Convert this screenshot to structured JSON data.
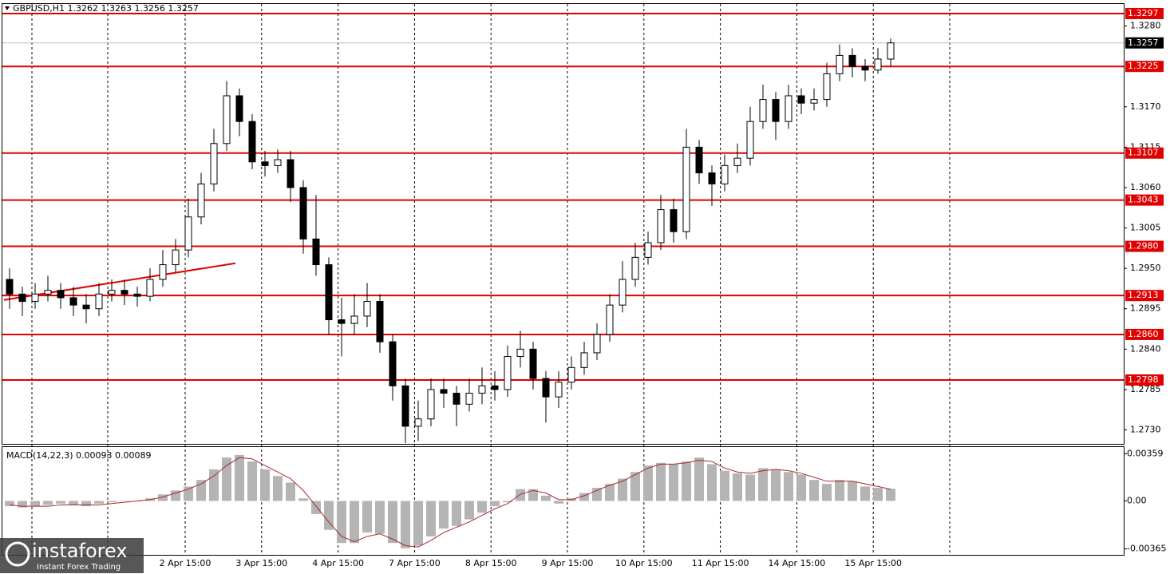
{
  "chart_data": {
    "type": "candlestick",
    "title": "GBPUSD,H1  1.3262 1.3263 1.3256 1.3257",
    "ylim": [
      1.2711,
      1.331
    ],
    "yticks": [
      {
        "value": 1.328,
        "label": "1.3280"
      },
      {
        "value": 1.317,
        "label": "1.3170"
      },
      1.3115,
      {
        "value": 1.306,
        "label": "1.3060"
      },
      1.3005,
      {
        "value": 1.295,
        "label": "1.2950"
      },
      1.2895,
      {
        "value": 1.284,
        "label": "1.2840"
      },
      1.2785,
      {
        "value": 1.273,
        "label": "1.2730"
      }
    ],
    "levels": [
      1.3297,
      1.3225,
      1.3107,
      1.3043,
      {
        "value": 1.298,
        "label": "1.2980"
      },
      1.2913,
      {
        "value": 1.286,
        "label": "1.2860"
      },
      1.2798
    ],
    "level_color": "#e00000",
    "current_price": 1.3257,
    "trendline": [
      1.2907,
      1.2957
    ],
    "xticks": [
      "2 Apr 15:00",
      "3 Apr 15:00",
      "4 Apr 15:00",
      "7 Apr 15:00",
      "8 Apr 15:00",
      "9 Apr 15:00",
      "10 Apr 15:00",
      "11 Apr 15:00",
      "14 Apr 15:00",
      "15 Apr 15:00"
    ],
    "open": [
      1.2935,
      1.2915,
      1.2905,
      1.2915,
      1.292,
      1.291,
      1.29,
      1.2895,
      1.2915,
      1.292,
      1.2915,
      1.2912,
      1.2935,
      1.2955,
      1.2975,
      1.302,
      1.3065,
      1.312,
      1.3185,
      1.315,
      1.3095,
      1.309,
      1.3098,
      1.306,
      1.299,
      1.2955,
      1.288,
      1.2875,
      1.2885,
      1.2905,
      1.285,
      1.279,
      1.2735,
      1.2745,
      1.2785,
      1.278,
      1.2765,
      1.278,
      1.279,
      1.2785,
      1.283,
      1.284,
      1.28,
      1.2775,
      1.2795,
      1.2815,
      1.2835,
      1.286,
      1.29,
      1.2935,
      1.2965,
      1.2985,
      1.303,
      1.3,
      1.3115,
      1.308,
      1.3065,
      1.309,
      1.31,
      1.315,
      1.318,
      1.315,
      1.3185,
      1.3175,
      1.318,
      1.3215,
      1.324,
      1.3225,
      1.322,
      1.3235
    ],
    "high": [
      1.295,
      1.2925,
      1.293,
      1.294,
      1.293,
      1.2925,
      1.2915,
      1.293,
      1.2935,
      1.2935,
      1.2925,
      1.295,
      1.2975,
      1.299,
      1.3045,
      1.308,
      1.314,
      1.3205,
      1.3195,
      1.316,
      1.311,
      1.3112,
      1.311,
      1.307,
      1.305,
      1.2965,
      1.291,
      1.2915,
      1.293,
      1.2915,
      1.286,
      1.28,
      1.277,
      1.28,
      1.28,
      1.279,
      1.28,
      1.2815,
      1.281,
      1.2845,
      1.2865,
      1.285,
      1.281,
      1.281,
      1.283,
      1.285,
      1.2875,
      1.2915,
      1.296,
      1.2985,
      1.3,
      1.305,
      1.3045,
      1.314,
      1.3125,
      1.309,
      1.3105,
      1.312,
      1.317,
      1.32,
      1.319,
      1.32,
      1.3195,
      1.3195,
      1.323,
      1.3255,
      1.325,
      1.3235,
      1.325,
      1.3263
    ],
    "low": [
      1.2895,
      1.2885,
      1.2895,
      1.2905,
      1.2895,
      1.2885,
      1.2875,
      1.2885,
      1.2905,
      1.29,
      1.2898,
      1.2905,
      1.2925,
      1.2945,
      1.2965,
      1.301,
      1.3055,
      1.311,
      1.313,
      1.3085,
      1.3075,
      1.308,
      1.304,
      1.297,
      1.294,
      1.286,
      1.283,
      1.286,
      1.287,
      1.2835,
      1.277,
      1.2712,
      1.2715,
      1.2735,
      1.276,
      1.2735,
      1.2755,
      1.2765,
      1.277,
      1.2775,
      1.2815,
      1.2785,
      1.274,
      1.276,
      1.2785,
      1.2805,
      1.2825,
      1.285,
      1.289,
      1.2925,
      1.2955,
      1.2975,
      1.2985,
      1.299,
      1.3065,
      1.3035,
      1.3055,
      1.308,
      1.309,
      1.314,
      1.3125,
      1.314,
      1.316,
      1.3165,
      1.317,
      1.3205,
      1.321,
      1.3205,
      1.3215,
      1.3225
    ],
    "close": [
      1.2915,
      1.2905,
      1.2915,
      1.292,
      1.291,
      1.29,
      1.2895,
      1.2915,
      1.292,
      1.2915,
      1.2912,
      1.2935,
      1.2955,
      1.2975,
      1.302,
      1.3065,
      1.312,
      1.3185,
      1.315,
      1.3095,
      1.309,
      1.3098,
      1.306,
      1.299,
      1.2955,
      1.288,
      1.2875,
      1.2885,
      1.2905,
      1.285,
      1.279,
      1.2735,
      1.2745,
      1.2785,
      1.278,
      1.2765,
      1.278,
      1.279,
      1.2785,
      1.283,
      1.284,
      1.28,
      1.2775,
      1.2795,
      1.2815,
      1.2835,
      1.286,
      1.29,
      1.2935,
      1.2965,
      1.2985,
      1.303,
      1.3,
      1.3115,
      1.308,
      1.3065,
      1.309,
      1.31,
      1.315,
      1.318,
      1.315,
      1.3185,
      1.3175,
      1.318,
      1.3215,
      1.324,
      1.3225,
      1.322,
      1.3235,
      1.3257
    ],
    "macd": {
      "label": "MACD(14,22,3) 0.00093 0.00089",
      "ylim": [
        -0.0041,
        0.0041
      ],
      "yticks": [
        {
          "value": 0.00359,
          "label": "0.00359"
        },
        {
          "value": 0,
          "label": "0.00"
        },
        {
          "value": -0.00365,
          "label": "-0.00365"
        }
      ],
      "values": [
        -0.0004,
        -0.0005,
        -0.0004,
        -0.0003,
        -0.0002,
        -0.0003,
        -0.0004,
        -0.0002,
        -0.0001,
        0,
        0,
        0.0002,
        0.0005,
        0.0008,
        0.0011,
        0.0016,
        0.0024,
        0.0033,
        0.0035,
        0.003,
        0.0024,
        0.0019,
        0.0014,
        0.0002,
        -0.001,
        -0.0022,
        -0.0032,
        -0.0032,
        -0.0024,
        -0.0025,
        -0.0032,
        -0.0036,
        -0.0034,
        -0.0027,
        -0.0021,
        -0.0019,
        -0.0014,
        -0.0009,
        -0.0004,
        -0.0001,
        0.0009,
        0.0009,
        0.0004,
        -0.0002,
        0.0002,
        0.0006,
        0.001,
        0.0013,
        0.0017,
        0.0022,
        0.0027,
        0.0029,
        0.0028,
        0.003,
        0.0033,
        0.0028,
        0.0023,
        0.0021,
        0.002,
        0.0025,
        0.0024,
        0.0022,
        0.002,
        0.0016,
        0.0013,
        0.0016,
        0.0015,
        0.0011,
        0.001,
        0.00093
      ],
      "signal": [
        -0.0003,
        -0.0004,
        -0.0004,
        -0.0004,
        -0.0003,
        -0.0003,
        -0.0003,
        -0.0003,
        -0.0002,
        -0.0001,
        0,
        0.0001,
        0.0003,
        0.0006,
        0.0009,
        0.0013,
        0.0019,
        0.0027,
        0.0033,
        0.0032,
        0.0027,
        0.0022,
        0.0017,
        0.0008,
        -0.0004,
        -0.0016,
        -0.0027,
        -0.0031,
        -0.0027,
        -0.0025,
        -0.0029,
        -0.0034,
        -0.0035,
        -0.003,
        -0.0024,
        -0.002,
        -0.0016,
        -0.0011,
        -0.0006,
        -0.0002,
        0.0005,
        0.0008,
        0.0006,
        0.0001,
        0.0001,
        0.0004,
        0.0008,
        0.0012,
        0.0015,
        0.002,
        0.0025,
        0.0028,
        0.0028,
        0.0029,
        0.0031,
        0.003,
        0.0025,
        0.0022,
        0.0021,
        0.0023,
        0.0024,
        0.0023,
        0.0021,
        0.0018,
        0.0015,
        0.0015,
        0.0015,
        0.0013,
        0.0011,
        0.00089
      ],
      "bar_color": "#b4b4b4",
      "signal_color": "#a52a2a"
    },
    "logo": {
      "brand": "instaforex",
      "tagline": "Instant Forex Trading"
    }
  }
}
